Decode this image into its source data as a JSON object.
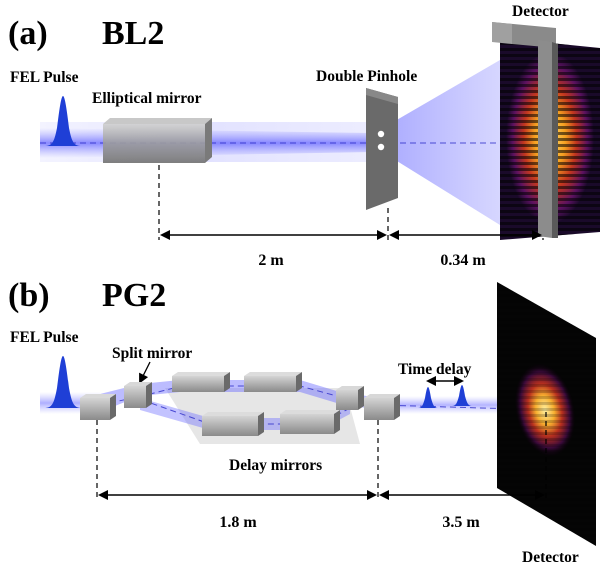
{
  "panel_a": {
    "tag": "(a)",
    "beamline": "BL2",
    "fel_pulse": "FEL Pulse",
    "elliptical_mirror": "Elliptical mirror",
    "double_pinhole": "Double Pinhole",
    "detector": "Detector",
    "dist_1": "2 m",
    "dist_2": "0.34 m"
  },
  "panel_b": {
    "tag": "(b)",
    "beamline": "PG2",
    "fel_pulse": "FEL Pulse",
    "split_mirror": "Split mirror",
    "time_delay": "Time delay",
    "delay_mirrors": "Delay mirrors",
    "detector": "Detector",
    "dist_1": "1.8 m",
    "dist_2": "3.5 m"
  },
  "colors": {
    "beam": "#5a5aff",
    "pulse": "#1f3fd6",
    "mirror": "#9a9a9a",
    "fringe_core": "#ffd24a",
    "fringe_edge": "#7a1e6a"
  }
}
